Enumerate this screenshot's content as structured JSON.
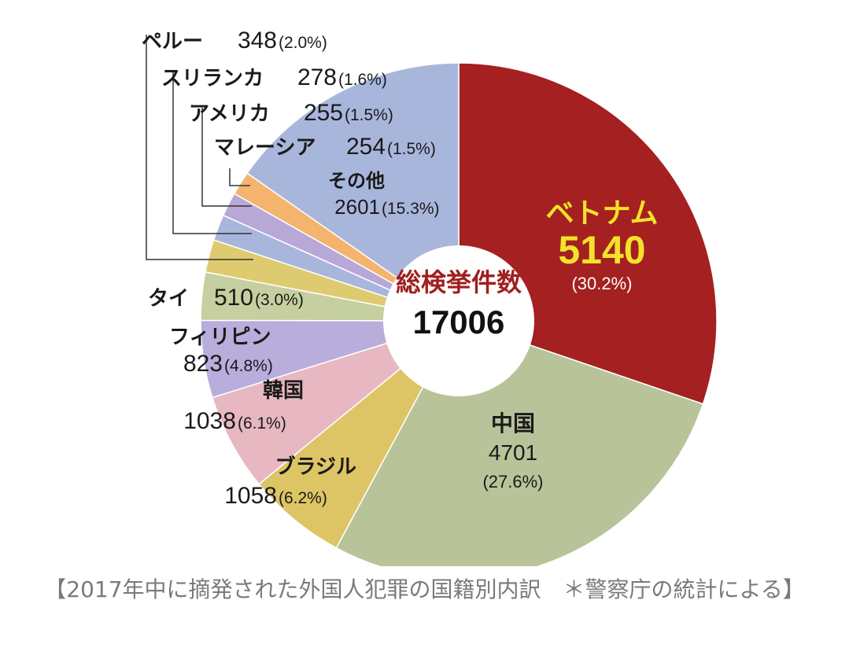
{
  "chart_data": {
    "type": "pie",
    "center_label": "総検挙件数",
    "center_value": "17006",
    "slices": [
      {
        "name": "ベトナム",
        "value": 5140,
        "pct": "(30.2%)",
        "color": "#a52020"
      },
      {
        "name": "中国",
        "value": 4701,
        "pct": "(27.6%)",
        "color": "#b8c39a"
      },
      {
        "name": "ブラジル",
        "value": 1058,
        "pct": "(6.2%)",
        "color": "#ddc565"
      },
      {
        "name": "韓国",
        "value": 1038,
        "pct": "(6.1%)",
        "color": "#e7b8c2"
      },
      {
        "name": "フィリピン",
        "value": 823,
        "pct": "(4.8%)",
        "color": "#b8addb"
      },
      {
        "name": "タイ",
        "value": 510,
        "pct": "(3.0%)",
        "color": "#c6cf9f"
      },
      {
        "name": "ペルー",
        "value": 348,
        "pct": "(2.0%)",
        "color": "#dfcb6f"
      },
      {
        "name": "スリランカ",
        "value": 278,
        "pct": "(1.6%)",
        "color": "#a9b6dc"
      },
      {
        "name": "アメリカ",
        "value": 255,
        "pct": "(1.5%)",
        "color": "#b7a8d8"
      },
      {
        "name": "マレーシア",
        "value": 254,
        "pct": "(1.5%)",
        "color": "#f4b46e"
      },
      {
        "name": "その他",
        "value": 2601,
        "pct": "(15.3%)",
        "color": "#a9b6dc"
      }
    ]
  },
  "caption": "【2017年中に摘発された外国人犯罪の国籍別内訳　＊警察庁の統計による】"
}
